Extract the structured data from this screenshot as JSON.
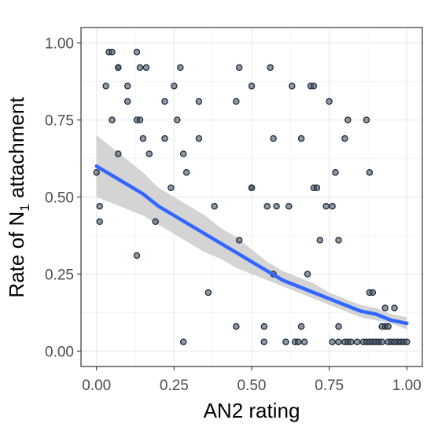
{
  "chart_data": {
    "type": "scatter",
    "xlabel": "AN2 rating",
    "ylabel": "Rate of N",
    "ylabel_subscript": "1",
    "ylabel_suffix": " attachment",
    "xlim": [
      -0.05,
      1.05
    ],
    "ylim": [
      -0.05,
      1.05
    ],
    "x_ticks": [
      0.0,
      0.25,
      0.5,
      0.75,
      1.0
    ],
    "x_tick_labels": [
      "0.00",
      "0.25",
      "0.50",
      "0.75",
      "1.00"
    ],
    "y_ticks": [
      0.0,
      0.25,
      0.5,
      0.75,
      1.0
    ],
    "y_tick_labels": [
      "0.00",
      "0.25",
      "0.50",
      "0.75",
      "1.00"
    ],
    "grid": true,
    "colors": {
      "points": "#44566b",
      "fit_line": "#3366ff",
      "ribbon": "#cccccc"
    },
    "points": [
      [
        0.0,
        0.58
      ],
      [
        0.01,
        0.47
      ],
      [
        0.01,
        0.42
      ],
      [
        0.03,
        0.86
      ],
      [
        0.04,
        0.97
      ],
      [
        0.05,
        0.97
      ],
      [
        0.05,
        0.75
      ],
      [
        0.07,
        0.92
      ],
      [
        0.07,
        0.92
      ],
      [
        0.07,
        0.64
      ],
      [
        0.1,
        0.81
      ],
      [
        0.1,
        0.86
      ],
      [
        0.13,
        0.97
      ],
      [
        0.13,
        0.75
      ],
      [
        0.14,
        0.75
      ],
      [
        0.14,
        0.92
      ],
      [
        0.15,
        0.69
      ],
      [
        0.16,
        0.92
      ],
      [
        0.17,
        0.64
      ],
      [
        0.13,
        0.31
      ],
      [
        0.19,
        0.42
      ],
      [
        0.22,
        0.81
      ],
      [
        0.22,
        0.69
      ],
      [
        0.24,
        0.53
      ],
      [
        0.25,
        0.86
      ],
      [
        0.26,
        0.75
      ],
      [
        0.27,
        0.92
      ],
      [
        0.28,
        0.64
      ],
      [
        0.29,
        0.58
      ],
      [
        0.28,
        0.03
      ],
      [
        0.33,
        0.81
      ],
      [
        0.33,
        0.69
      ],
      [
        0.36,
        0.19
      ],
      [
        0.38,
        0.47
      ],
      [
        0.45,
        0.81
      ],
      [
        0.46,
        0.36
      ],
      [
        0.46,
        0.92
      ],
      [
        0.45,
        0.08
      ],
      [
        0.5,
        0.53
      ],
      [
        0.5,
        0.86
      ],
      [
        0.5,
        0.53
      ],
      [
        0.54,
        0.08
      ],
      [
        0.54,
        0.03
      ],
      [
        0.55,
        0.47
      ],
      [
        0.56,
        0.92
      ],
      [
        0.57,
        0.69
      ],
      [
        0.57,
        0.25
      ],
      [
        0.58,
        0.47
      ],
      [
        0.61,
        0.03
      ],
      [
        0.62,
        0.47
      ],
      [
        0.63,
        0.86
      ],
      [
        0.64,
        0.03
      ],
      [
        0.65,
        0.03
      ],
      [
        0.66,
        0.69
      ],
      [
        0.66,
        0.08
      ],
      [
        0.67,
        0.03
      ],
      [
        0.68,
        0.25
      ],
      [
        0.69,
        0.86
      ],
      [
        0.7,
        0.86
      ],
      [
        0.7,
        0.53
      ],
      [
        0.71,
        0.53
      ],
      [
        0.72,
        0.36
      ],
      [
        0.74,
        0.47
      ],
      [
        0.75,
        0.81
      ],
      [
        0.76,
        0.47
      ],
      [
        0.77,
        0.58
      ],
      [
        0.78,
        0.36
      ],
      [
        0.78,
        0.08
      ],
      [
        0.8,
        0.69
      ],
      [
        0.81,
        0.75
      ],
      [
        0.84,
        0.03
      ],
      [
        0.87,
        0.75
      ],
      [
        0.88,
        0.58
      ],
      [
        0.88,
        0.19
      ],
      [
        0.89,
        0.19
      ],
      [
        0.93,
        0.14
      ],
      [
        0.93,
        0.08
      ],
      [
        0.96,
        0.14
      ],
      [
        0.92,
        0.08
      ],
      [
        0.94,
        0.08
      ],
      [
        0.97,
        0.03
      ],
      [
        0.76,
        0.03
      ],
      [
        0.78,
        0.03
      ],
      [
        0.8,
        0.03
      ],
      [
        0.81,
        0.03
      ],
      [
        0.82,
        0.03
      ],
      [
        0.86,
        0.03
      ],
      [
        0.87,
        0.03
      ],
      [
        0.88,
        0.03
      ],
      [
        0.89,
        0.03
      ],
      [
        0.9,
        0.03
      ],
      [
        0.91,
        0.03
      ],
      [
        0.92,
        0.03
      ],
      [
        0.94,
        0.03
      ],
      [
        0.95,
        0.03
      ],
      [
        0.96,
        0.03
      ],
      [
        0.98,
        0.03
      ],
      [
        0.99,
        0.03
      ],
      [
        1.0,
        0.03
      ]
    ],
    "fit": {
      "x": [
        0.0,
        0.05,
        0.1,
        0.15,
        0.2,
        0.25,
        0.3,
        0.35,
        0.4,
        0.45,
        0.5,
        0.55,
        0.6,
        0.65,
        0.7,
        0.75,
        0.8,
        0.85,
        0.9,
        0.95,
        1.0
      ],
      "y": [
        0.6,
        0.57,
        0.54,
        0.51,
        0.47,
        0.44,
        0.41,
        0.38,
        0.35,
        0.32,
        0.29,
        0.26,
        0.23,
        0.21,
        0.19,
        0.17,
        0.15,
        0.13,
        0.12,
        0.1,
        0.09
      ],
      "lower": [
        0.5,
        0.48,
        0.46,
        0.44,
        0.41,
        0.38,
        0.35,
        0.32,
        0.3,
        0.27,
        0.25,
        0.23,
        0.21,
        0.19,
        0.17,
        0.15,
        0.13,
        0.11,
        0.1,
        0.09,
        0.07
      ],
      "upper": [
        0.7,
        0.66,
        0.62,
        0.58,
        0.53,
        0.5,
        0.47,
        0.44,
        0.4,
        0.37,
        0.33,
        0.29,
        0.26,
        0.24,
        0.22,
        0.19,
        0.17,
        0.15,
        0.14,
        0.12,
        0.11
      ]
    }
  }
}
